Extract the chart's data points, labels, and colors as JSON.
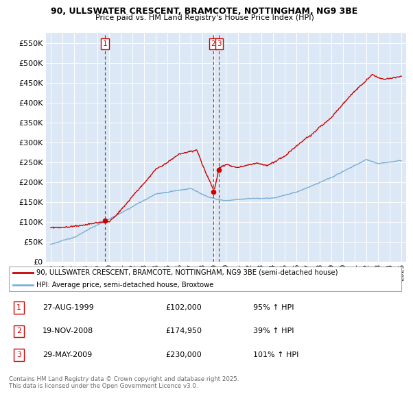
{
  "title1": "90, ULLSWATER CRESCENT, BRAMCOTE, NOTTINGHAM, NG9 3BE",
  "title2": "Price paid vs. HM Land Registry's House Price Index (HPI)",
  "legend_line1": "90, ULLSWATER CRESCENT, BRAMCOTE, NOTTINGHAM, NG9 3BE (semi-detached house)",
  "legend_line2": "HPI: Average price, semi-detached house, Broxtowe",
  "footer": "Contains HM Land Registry data © Crown copyright and database right 2025.\nThis data is licensed under the Open Government Licence v3.0.",
  "transactions": [
    {
      "num": 1,
      "date": "27-AUG-1999",
      "price": "£102,000",
      "pct": "95% ↑ HPI"
    },
    {
      "num": 2,
      "date": "19-NOV-2008",
      "price": "£174,950",
      "pct": "39% ↑ HPI"
    },
    {
      "num": 3,
      "date": "29-MAY-2009",
      "price": "£230,000",
      "pct": "101% ↑ HPI"
    }
  ],
  "sale_dates_decimal": [
    1999.65,
    2008.89,
    2009.41
  ],
  "sale_prices": [
    102000,
    174950,
    230000
  ],
  "red_color": "#cc0000",
  "blue_color": "#7bafd4",
  "plot_bg": "#e8f0f8",
  "ylim": [
    0,
    575000
  ],
  "yticks": [
    0,
    50000,
    100000,
    150000,
    200000,
    250000,
    300000,
    350000,
    400000,
    450000,
    500000,
    550000
  ],
  "ytick_labels": [
    "£0",
    "£50K",
    "£100K",
    "£150K",
    "£200K",
    "£250K",
    "£300K",
    "£350K",
    "£400K",
    "£450K",
    "£500K",
    "£550K"
  ],
  "xlim_start": 1994.6,
  "xlim_end": 2025.4,
  "xticks": [
    1995,
    1996,
    1997,
    1998,
    1999,
    2000,
    2001,
    2002,
    2003,
    2004,
    2005,
    2006,
    2007,
    2008,
    2009,
    2010,
    2011,
    2012,
    2013,
    2014,
    2015,
    2016,
    2017,
    2018,
    2019,
    2020,
    2021,
    2022,
    2023,
    2024,
    2025
  ]
}
